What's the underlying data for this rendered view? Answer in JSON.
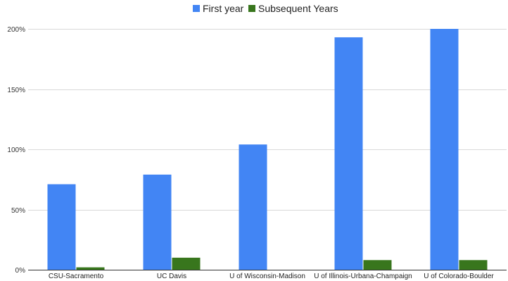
{
  "chart_data": {
    "type": "bar",
    "categories": [
      "CSU-Sacramento",
      "UC Davis",
      "U of Wisconsin-Madison",
      "U of Illinois-Urbana-Champaign",
      "U of Colorado-Boulder"
    ],
    "series": [
      {
        "name": "First year",
        "values": [
          71,
          79,
          104,
          193,
          200
        ],
        "color": "#4285f4"
      },
      {
        "name": "Subsequent Years",
        "values": [
          2,
          10,
          0,
          8,
          8
        ],
        "color": "#38761d"
      }
    ],
    "title": "",
    "xlabel": "",
    "ylabel": "",
    "ylim": [
      0,
      200
    ],
    "yticks": [
      0,
      50,
      100,
      150,
      200
    ],
    "ytick_labels": [
      "0%",
      "50%",
      "100%",
      "150%",
      "200%"
    ],
    "y_unit": "%",
    "grid": true,
    "legend_position": "top-center"
  }
}
